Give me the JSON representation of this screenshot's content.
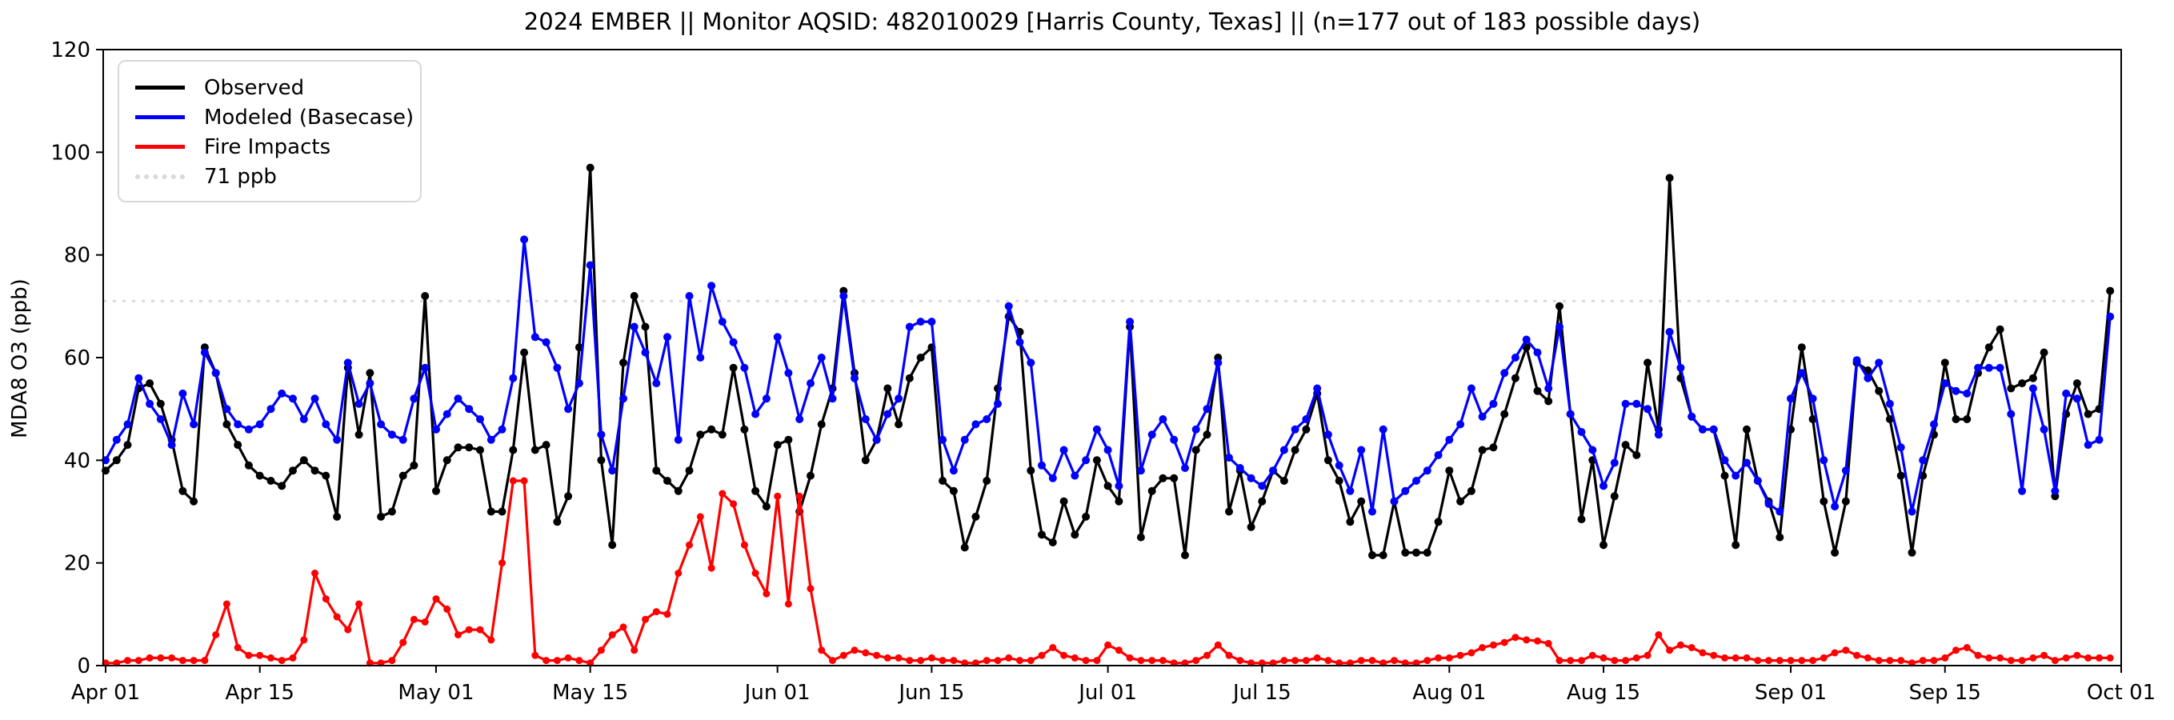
{
  "title": "2024 EMBER || Monitor AQSID: 482010029 [Harris County, Texas] || (n=177 out of 183 possible days)",
  "ylabel": "MDA8 O3 (ppb)",
  "legend": {
    "items": [
      {
        "label": "Observed",
        "color": "#000000",
        "style": "solid"
      },
      {
        "label": "Modeled (Basecase)",
        "color": "#0000ff",
        "style": "solid"
      },
      {
        "label": "Fire Impacts",
        "color": "#ff0000",
        "style": "solid"
      },
      {
        "label": "71 ppb",
        "color": "#d9d9d9",
        "style": "dotted"
      }
    ]
  },
  "chart_data": {
    "type": "line",
    "title": "2024 EMBER || Monitor AQSID: 482010029 [Harris County, Texas] || (n=177 out of 183 possible days)",
    "xlabel": "",
    "ylabel": "MDA8 O3 (ppb)",
    "ylim": [
      0,
      120
    ],
    "y_ticks": [
      0,
      20,
      40,
      60,
      80,
      100,
      120
    ],
    "x_start_date": "Apr 01",
    "x_end_date": "Oct 01",
    "n_days": 183,
    "grid": false,
    "legend_position": "upper left",
    "threshold": {
      "label": "71 ppb",
      "value": 71,
      "color": "#d9d9d9",
      "style": "dotted"
    },
    "x_ticks": [
      {
        "index": 0,
        "label": "Apr 01"
      },
      {
        "index": 14,
        "label": "Apr 15"
      },
      {
        "index": 30,
        "label": "May 01"
      },
      {
        "index": 44,
        "label": "May 15"
      },
      {
        "index": 61,
        "label": "Jun 01"
      },
      {
        "index": 75,
        "label": "Jun 15"
      },
      {
        "index": 91,
        "label": "Jul 01"
      },
      {
        "index": 105,
        "label": "Jul 15"
      },
      {
        "index": 122,
        "label": "Aug 01"
      },
      {
        "index": 136,
        "label": "Aug 15"
      },
      {
        "index": 153,
        "label": "Sep 01"
      },
      {
        "index": 167,
        "label": "Sep 15"
      },
      {
        "index": 183,
        "label": "Oct 01"
      }
    ],
    "series": [
      {
        "name": "Observed",
        "color": "#000000",
        "marker": "circle",
        "values": [
          38,
          40,
          43,
          54,
          55,
          51,
          44,
          34,
          32,
          62,
          57,
          47,
          43,
          39,
          37,
          36,
          35,
          38,
          40,
          38,
          37,
          29,
          58,
          45,
          57,
          29,
          30,
          37,
          39,
          72,
          34,
          40,
          42.5,
          42.5,
          42,
          30,
          30,
          42,
          61,
          42,
          43,
          28,
          33,
          62,
          97,
          40,
          23.5,
          59,
          72,
          66,
          38,
          36,
          34,
          38,
          45,
          46,
          45,
          58,
          46,
          34,
          31,
          43,
          44,
          30,
          37,
          47,
          54,
          73,
          57,
          40,
          44,
          54,
          47,
          56,
          60,
          62,
          36,
          34,
          23,
          29,
          36,
          54,
          68,
          65,
          38,
          25.5,
          24,
          32,
          25.5,
          29,
          40,
          35,
          32,
          66,
          25,
          34,
          36.5,
          36.5,
          21.5,
          42,
          45,
          60,
          30,
          38,
          27,
          32,
          38,
          36,
          42,
          46,
          53,
          40,
          36,
          28,
          32,
          21.5,
          21.5,
          32,
          22,
          22,
          22,
          28,
          38,
          32,
          34,
          42,
          42.5,
          49,
          56,
          62,
          53.5,
          51.5,
          70,
          49,
          28.5,
          40,
          23.5,
          33,
          43,
          41,
          59,
          46,
          95,
          56,
          48.5,
          46,
          46,
          37,
          23.5,
          46,
          36,
          32,
          25,
          46,
          62,
          48,
          32,
          22,
          32,
          59,
          57.5,
          53.5,
          48,
          37,
          22,
          37,
          45,
          59,
          48,
          48,
          57,
          62,
          65.5,
          54,
          55,
          56,
          61,
          33,
          49,
          55,
          49,
          50,
          73
        ]
      },
      {
        "name": "Modeled (Basecase)",
        "color": "#0000ff",
        "marker": "circle",
        "values": [
          40,
          44,
          47,
          56,
          51,
          48,
          43,
          53,
          47,
          61,
          57,
          50,
          47,
          46,
          47,
          50,
          53,
          52,
          48,
          52,
          47,
          44,
          59,
          51,
          55,
          47,
          45,
          44,
          52,
          58,
          46,
          49,
          52,
          50,
          48,
          44,
          46,
          56,
          83,
          64,
          63,
          58,
          50,
          55,
          78,
          45,
          38,
          52,
          66,
          61,
          55,
          64,
          44,
          72,
          60,
          74,
          67,
          63,
          58,
          49,
          52,
          64,
          57,
          48,
          55,
          60,
          52,
          72,
          56,
          48,
          44,
          49,
          52,
          66,
          67,
          67,
          44,
          38,
          44,
          47,
          48,
          51,
          70,
          63,
          59,
          39,
          36.5,
          42,
          37,
          40,
          46,
          42,
          35,
          67,
          38,
          45,
          48,
          44,
          38.5,
          46,
          50,
          59,
          40.5,
          38.5,
          36.5,
          35,
          38,
          42,
          46,
          48,
          54,
          45,
          39,
          34,
          42,
          30,
          46,
          32,
          34,
          36,
          38,
          41,
          44,
          47,
          54,
          48.5,
          51,
          57,
          60,
          63.5,
          61,
          54,
          66,
          49,
          45.5,
          42,
          35,
          39.5,
          51,
          51,
          50,
          45,
          65,
          58,
          48.5,
          46,
          46,
          40,
          37,
          39.5,
          36,
          31.5,
          30,
          52,
          57,
          52,
          40,
          31,
          38,
          59.5,
          56,
          59,
          51,
          42.5,
          30,
          40,
          47,
          55,
          53.5,
          53,
          58,
          58,
          58,
          49,
          34,
          54,
          46,
          34,
          53,
          52,
          43,
          44,
          68
        ]
      },
      {
        "name": "Fire Impacts",
        "color": "#ff0000",
        "marker": "circle",
        "values": [
          0.5,
          0.5,
          1,
          1,
          1.5,
          1.5,
          1.5,
          1,
          1,
          1,
          6,
          12,
          3.5,
          2,
          2,
          1.5,
          1,
          1.5,
          5,
          18,
          13,
          9.5,
          7,
          12,
          0.5,
          0.5,
          1,
          4.5,
          9,
          8.5,
          13,
          11,
          6,
          7,
          7,
          5,
          20,
          36,
          36,
          2,
          1,
          1,
          1.5,
          1,
          0.5,
          3,
          6,
          7.5,
          3,
          9,
          10.5,
          10,
          18,
          23.5,
          29,
          19,
          33.5,
          31.5,
          23.5,
          18,
          14,
          33,
          12,
          33,
          15,
          3,
          1,
          2,
          3,
          2.5,
          2,
          1.5,
          1.5,
          1,
          1,
          1.5,
          1,
          1,
          0.5,
          0.5,
          1,
          1,
          1.5,
          1,
          1,
          2,
          3.5,
          2,
          1.5,
          1,
          1,
          4,
          3,
          1.5,
          1,
          1,
          1,
          0.5,
          0.5,
          1,
          2,
          4,
          2,
          1,
          0.5,
          0.5,
          0.5,
          1,
          1,
          1,
          1.5,
          1,
          0.5,
          0.5,
          1,
          1,
          0.5,
          1,
          0.5,
          0.5,
          1,
          1.5,
          1.5,
          2,
          2.5,
          3.5,
          4,
          4.5,
          5.5,
          5,
          4.8,
          4.3,
          1,
          1,
          1,
          2,
          1.5,
          1,
          1,
          1.5,
          2,
          6,
          3,
          4,
          3.5,
          2.5,
          2,
          1.5,
          1.5,
          1.5,
          1,
          1,
          1,
          1,
          1,
          1,
          1.5,
          2.5,
          3,
          2,
          1.5,
          1,
          1,
          1,
          0.5,
          1,
          1,
          1.5,
          3,
          3.5,
          2,
          1.5,
          1.5,
          1,
          1,
          1.5,
          2,
          1,
          1.5,
          2,
          1.5,
          1.5,
          1.5
        ]
      }
    ]
  }
}
